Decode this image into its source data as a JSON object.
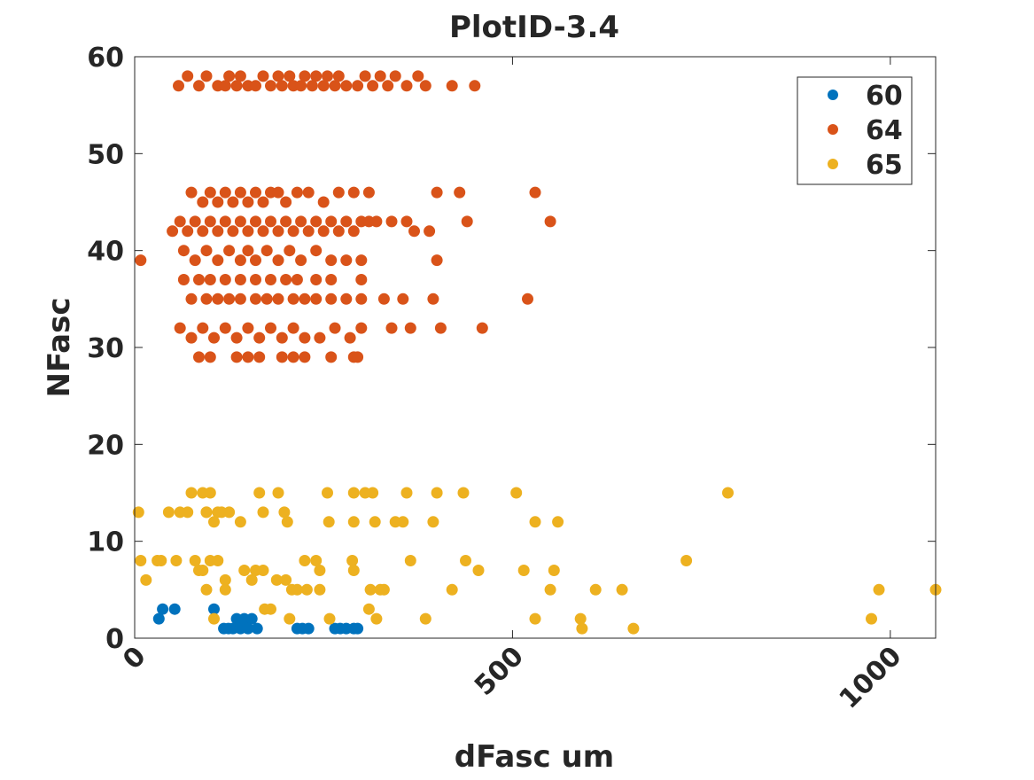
{
  "chart_data": {
    "type": "scatter",
    "title": "PlotID-3.4",
    "xlabel": "dFasc um",
    "ylabel": "NFasc",
    "xlim": [
      0,
      1060
    ],
    "ylim": [
      0,
      60
    ],
    "xticks": [
      0,
      500,
      1000
    ],
    "yticks": [
      0,
      10,
      20,
      30,
      40,
      50,
      60
    ],
    "grid": false,
    "legend_position": "top-right",
    "series": [
      {
        "name": "60",
        "color": "#0072BD",
        "points": [
          [
            32,
            2
          ],
          [
            37,
            3
          ],
          [
            53,
            3
          ],
          [
            105,
            3
          ],
          [
            118,
            1
          ],
          [
            124,
            1
          ],
          [
            130,
            1
          ],
          [
            135,
            2
          ],
          [
            140,
            1
          ],
          [
            145,
            2
          ],
          [
            150,
            1
          ],
          [
            155,
            2
          ],
          [
            162,
            1
          ],
          [
            215,
            1
          ],
          [
            222,
            1
          ],
          [
            230,
            1
          ],
          [
            265,
            1
          ],
          [
            272,
            1
          ],
          [
            280,
            1
          ],
          [
            290,
            1
          ],
          [
            295,
            1
          ]
        ]
      },
      {
        "name": "64",
        "color": "#D95319",
        "points": [
          [
            8,
            39
          ],
          [
            58,
            57
          ],
          [
            70,
            58
          ],
          [
            85,
            57
          ],
          [
            95,
            58
          ],
          [
            110,
            57
          ],
          [
            120,
            57
          ],
          [
            125,
            58
          ],
          [
            135,
            57
          ],
          [
            140,
            58
          ],
          [
            150,
            57
          ],
          [
            160,
            57
          ],
          [
            170,
            58
          ],
          [
            180,
            57
          ],
          [
            190,
            58
          ],
          [
            195,
            57
          ],
          [
            205,
            58
          ],
          [
            210,
            57
          ],
          [
            220,
            57
          ],
          [
            225,
            58
          ],
          [
            235,
            57
          ],
          [
            240,
            58
          ],
          [
            250,
            57
          ],
          [
            255,
            58
          ],
          [
            265,
            57
          ],
          [
            270,
            58
          ],
          [
            280,
            57
          ],
          [
            295,
            57
          ],
          [
            305,
            58
          ],
          [
            315,
            57
          ],
          [
            325,
            58
          ],
          [
            335,
            57
          ],
          [
            345,
            58
          ],
          [
            360,
            57
          ],
          [
            375,
            58
          ],
          [
            385,
            57
          ],
          [
            420,
            57
          ],
          [
            450,
            57
          ],
          [
            75,
            46
          ],
          [
            90,
            45
          ],
          [
            100,
            46
          ],
          [
            110,
            45
          ],
          [
            120,
            46
          ],
          [
            130,
            45
          ],
          [
            140,
            46
          ],
          [
            150,
            45
          ],
          [
            160,
            46
          ],
          [
            170,
            45
          ],
          [
            180,
            46
          ],
          [
            190,
            46
          ],
          [
            200,
            45
          ],
          [
            215,
            46
          ],
          [
            230,
            46
          ],
          [
            250,
            45
          ],
          [
            270,
            46
          ],
          [
            290,
            46
          ],
          [
            310,
            46
          ],
          [
            400,
            46
          ],
          [
            430,
            46
          ],
          [
            530,
            46
          ],
          [
            50,
            42
          ],
          [
            60,
            43
          ],
          [
            70,
            42
          ],
          [
            80,
            43
          ],
          [
            90,
            42
          ],
          [
            100,
            43
          ],
          [
            110,
            42
          ],
          [
            120,
            43
          ],
          [
            130,
            42
          ],
          [
            140,
            43
          ],
          [
            150,
            42
          ],
          [
            160,
            43
          ],
          [
            170,
            42
          ],
          [
            180,
            43
          ],
          [
            190,
            42
          ],
          [
            200,
            43
          ],
          [
            210,
            42
          ],
          [
            220,
            43
          ],
          [
            230,
            42
          ],
          [
            240,
            43
          ],
          [
            250,
            42
          ],
          [
            260,
            43
          ],
          [
            270,
            42
          ],
          [
            280,
            43
          ],
          [
            290,
            42
          ],
          [
            300,
            43
          ],
          [
            310,
            43
          ],
          [
            320,
            43
          ],
          [
            340,
            43
          ],
          [
            360,
            43
          ],
          [
            370,
            42
          ],
          [
            390,
            42
          ],
          [
            440,
            43
          ],
          [
            550,
            43
          ],
          [
            65,
            40
          ],
          [
            80,
            39
          ],
          [
            95,
            40
          ],
          [
            110,
            39
          ],
          [
            125,
            40
          ],
          [
            140,
            39
          ],
          [
            150,
            40
          ],
          [
            160,
            39
          ],
          [
            175,
            40
          ],
          [
            190,
            39
          ],
          [
            205,
            40
          ],
          [
            220,
            39
          ],
          [
            240,
            40
          ],
          [
            260,
            39
          ],
          [
            280,
            39
          ],
          [
            300,
            39
          ],
          [
            400,
            39
          ],
          [
            65,
            37
          ],
          [
            85,
            37
          ],
          [
            100,
            37
          ],
          [
            120,
            37
          ],
          [
            140,
            37
          ],
          [
            160,
            37
          ],
          [
            180,
            37
          ],
          [
            200,
            37
          ],
          [
            215,
            37
          ],
          [
            240,
            37
          ],
          [
            260,
            37
          ],
          [
            300,
            37
          ],
          [
            75,
            35
          ],
          [
            95,
            35
          ],
          [
            110,
            35
          ],
          [
            125,
            35
          ],
          [
            140,
            35
          ],
          [
            160,
            35
          ],
          [
            175,
            35
          ],
          [
            190,
            35
          ],
          [
            210,
            35
          ],
          [
            225,
            35
          ],
          [
            240,
            35
          ],
          [
            260,
            35
          ],
          [
            280,
            35
          ],
          [
            300,
            35
          ],
          [
            330,
            35
          ],
          [
            355,
            35
          ],
          [
            395,
            35
          ],
          [
            520,
            35
          ],
          [
            60,
            32
          ],
          [
            75,
            31
          ],
          [
            90,
            32
          ],
          [
            105,
            31
          ],
          [
            120,
            32
          ],
          [
            135,
            31
          ],
          [
            150,
            32
          ],
          [
            165,
            31
          ],
          [
            180,
            32
          ],
          [
            195,
            31
          ],
          [
            210,
            32
          ],
          [
            225,
            31
          ],
          [
            245,
            31
          ],
          [
            265,
            32
          ],
          [
            285,
            31
          ],
          [
            300,
            32
          ],
          [
            340,
            32
          ],
          [
            365,
            32
          ],
          [
            405,
            32
          ],
          [
            460,
            32
          ],
          [
            85,
            29
          ],
          [
            100,
            29
          ],
          [
            135,
            29
          ],
          [
            150,
            29
          ],
          [
            165,
            29
          ],
          [
            195,
            29
          ],
          [
            210,
            29
          ],
          [
            225,
            29
          ],
          [
            260,
            29
          ],
          [
            290,
            29
          ],
          [
            295,
            29
          ]
        ]
      },
      {
        "name": "65",
        "color": "#EDB120",
        "points": [
          [
            5,
            13
          ],
          [
            8,
            8
          ],
          [
            15,
            6
          ],
          [
            30,
            8
          ],
          [
            35,
            8
          ],
          [
            45,
            13
          ],
          [
            55,
            8
          ],
          [
            60,
            13
          ],
          [
            70,
            13
          ],
          [
            75,
            15
          ],
          [
            80,
            8
          ],
          [
            85,
            7
          ],
          [
            90,
            15
          ],
          [
            95,
            13
          ],
          [
            100,
            15
          ],
          [
            100,
            8
          ],
          [
            105,
            12
          ],
          [
            110,
            8
          ],
          [
            115,
            13
          ],
          [
            120,
            6
          ],
          [
            125,
            13
          ],
          [
            95,
            13
          ],
          [
            90,
            7
          ],
          [
            95,
            5
          ],
          [
            105,
            2
          ],
          [
            110,
            13
          ],
          [
            120,
            5
          ],
          [
            140,
            12
          ],
          [
            145,
            7
          ],
          [
            155,
            6
          ],
          [
            160,
            7
          ],
          [
            165,
            15
          ],
          [
            170,
            7
          ],
          [
            170,
            13
          ],
          [
            172,
            3
          ],
          [
            180,
            3
          ],
          [
            188,
            6
          ],
          [
            190,
            15
          ],
          [
            198,
            13
          ],
          [
            200,
            6
          ],
          [
            202,
            12
          ],
          [
            205,
            2
          ],
          [
            208,
            5
          ],
          [
            215,
            5
          ],
          [
            225,
            8
          ],
          [
            228,
            5
          ],
          [
            240,
            8
          ],
          [
            245,
            7
          ],
          [
            245,
            5
          ],
          [
            255,
            15
          ],
          [
            257,
            12
          ],
          [
            258,
            2
          ],
          [
            288,
            8
          ],
          [
            290,
            7
          ],
          [
            290,
            12
          ],
          [
            290,
            15
          ],
          [
            305,
            15
          ],
          [
            310,
            3
          ],
          [
            312,
            5
          ],
          [
            315,
            15
          ],
          [
            318,
            12
          ],
          [
            320,
            2
          ],
          [
            325,
            5
          ],
          [
            330,
            5
          ],
          [
            345,
            12
          ],
          [
            355,
            12
          ],
          [
            360,
            15
          ],
          [
            365,
            8
          ],
          [
            385,
            2
          ],
          [
            395,
            12
          ],
          [
            400,
            15
          ],
          [
            420,
            5
          ],
          [
            435,
            15
          ],
          [
            438,
            8
          ],
          [
            455,
            7
          ],
          [
            505,
            15
          ],
          [
            515,
            7
          ],
          [
            530,
            2
          ],
          [
            530,
            12
          ],
          [
            550,
            5
          ],
          [
            555,
            7
          ],
          [
            560,
            12
          ],
          [
            590,
            2
          ],
          [
            592,
            1
          ],
          [
            610,
            5
          ],
          [
            645,
            5
          ],
          [
            660,
            1
          ],
          [
            730,
            8
          ],
          [
            785,
            15
          ],
          [
            975,
            2
          ],
          [
            985,
            5
          ],
          [
            1060,
            5
          ]
        ]
      }
    ]
  }
}
